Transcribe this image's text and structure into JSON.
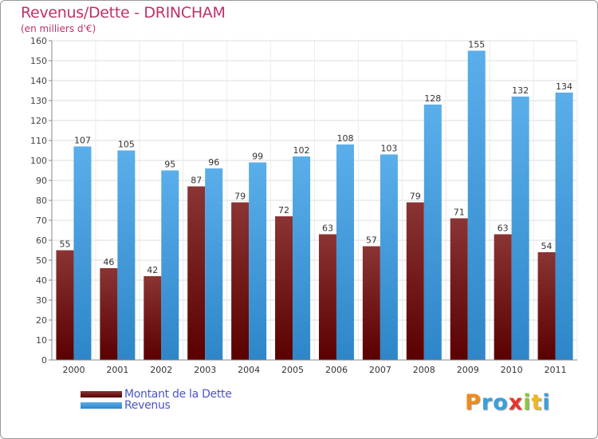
{
  "chart_data": {
    "type": "bar",
    "title": "Revenus/Dette - DRINCHAM",
    "subtitle": "(en milliers d'€)",
    "categories": [
      "2000",
      "2001",
      "2002",
      "2003",
      "2004",
      "2005",
      "2006",
      "2007",
      "2008",
      "2009",
      "2010",
      "2011"
    ],
    "series": [
      {
        "name": "Montant de la Dette",
        "values": [
          55,
          46,
          42,
          87,
          79,
          72,
          63,
          57,
          79,
          71,
          63,
          54
        ]
      },
      {
        "name": "Revenus",
        "values": [
          107,
          105,
          95,
          96,
          99,
          102,
          108,
          103,
          128,
          155,
          132,
          134
        ]
      }
    ],
    "yticks": [
      0,
      10,
      20,
      30,
      40,
      50,
      60,
      70,
      80,
      90,
      100,
      110,
      120,
      130,
      140,
      150,
      160
    ],
    "ylim": [
      0,
      160
    ],
    "grid": true,
    "legend_position": "bottom-left",
    "colors": {
      "dette_top": "#8a3434",
      "dette_bottom": "#5a0000",
      "revenus_top": "#5aaeea",
      "revenus_bottom": "#2e86c8",
      "title": "#c0306a",
      "legend_text": "#4a55c8"
    }
  },
  "legend": {
    "items": [
      {
        "label": "Montant de la Dette",
        "color": "#5a0000"
      },
      {
        "label": "Revenus",
        "color": "#3a90d8"
      }
    ]
  },
  "logo": {
    "text": "Proxiti"
  }
}
